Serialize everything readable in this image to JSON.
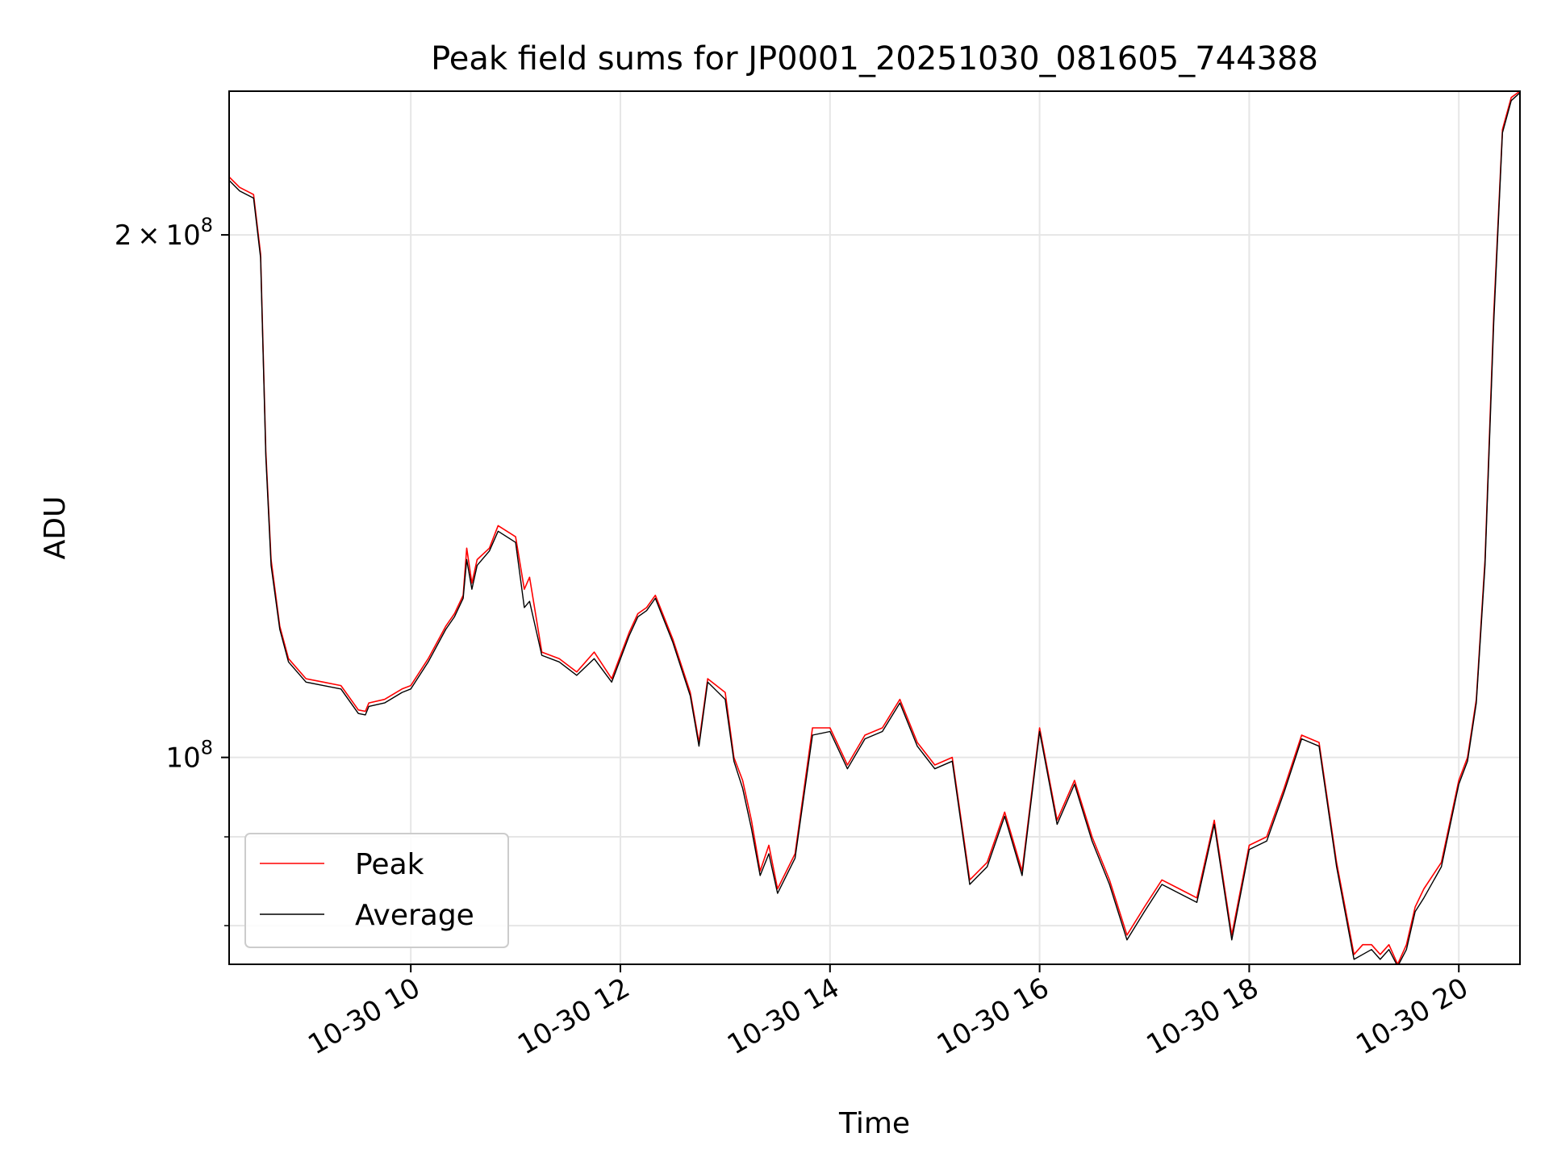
{
  "chart_data": {
    "type": "line",
    "title": "Peak field sums for JP0001_20251030_081605_744388",
    "xlabel": "Time",
    "ylabel": "ADU",
    "x_axis": {
      "kind": "datetime",
      "range": [
        "2025-10-30 08:16",
        "2025-10-30 20:35"
      ],
      "ticks": [
        "2025-10-30 10:00",
        "2025-10-30 12:00",
        "2025-10-30 14:00",
        "2025-10-30 16:00",
        "2025-10-30 18:00",
        "2025-10-30 20:00"
      ],
      "tick_labels": [
        "10-30 10",
        "10-30 12",
        "10-30 14",
        "10-30 16",
        "10-30 18",
        "10-30 20"
      ]
    },
    "y_axis": {
      "scale": "log",
      "range": [
        76000000,
        242000000
      ],
      "major_ticks": [
        100000000,
        200000000
      ],
      "major_tick_labels": [
        {
          "base": "10",
          "exp": "8"
        },
        {
          "mant": "2",
          "base": "10",
          "exp": "8"
        }
      ],
      "minor_ticks": [
        80000000,
        90000000
      ]
    },
    "grid": true,
    "legend": {
      "position": "lower-left",
      "entries": [
        "Peak",
        "Average"
      ]
    },
    "series": [
      {
        "name": "Peak",
        "color": "#ff0000",
        "x": [
          "2025-10-30 08:16",
          "2025-10-30 08:22",
          "2025-10-30 08:30",
          "2025-10-30 08:34",
          "2025-10-30 08:37",
          "2025-10-30 08:40",
          "2025-10-30 08:45",
          "2025-10-30 08:50",
          "2025-10-30 09:00",
          "2025-10-30 09:10",
          "2025-10-30 09:20",
          "2025-10-30 09:30",
          "2025-10-30 09:34",
          "2025-10-30 09:36",
          "2025-10-30 09:45",
          "2025-10-30 09:55",
          "2025-10-30 10:00",
          "2025-10-30 10:10",
          "2025-10-30 10:20",
          "2025-10-30 10:25",
          "2025-10-30 10:30",
          "2025-10-30 10:32",
          "2025-10-30 10:35",
          "2025-10-30 10:38",
          "2025-10-30 10:45",
          "2025-10-30 10:50",
          "2025-10-30 11:00",
          "2025-10-30 11:05",
          "2025-10-30 11:08",
          "2025-10-30 11:15",
          "2025-10-30 11:25",
          "2025-10-30 11:35",
          "2025-10-30 11:45",
          "2025-10-30 11:55",
          "2025-10-30 12:05",
          "2025-10-30 12:10",
          "2025-10-30 12:15",
          "2025-10-30 12:20",
          "2025-10-30 12:30",
          "2025-10-30 12:40",
          "2025-10-30 12:45",
          "2025-10-30 12:50",
          "2025-10-30 13:00",
          "2025-10-30 13:05",
          "2025-10-30 13:10",
          "2025-10-30 13:15",
          "2025-10-30 13:20",
          "2025-10-30 13:25",
          "2025-10-30 13:30",
          "2025-10-30 13:40",
          "2025-10-30 13:50",
          "2025-10-30 14:00",
          "2025-10-30 14:10",
          "2025-10-30 14:20",
          "2025-10-30 14:30",
          "2025-10-30 14:40",
          "2025-10-30 14:50",
          "2025-10-30 15:00",
          "2025-10-30 15:10",
          "2025-10-30 15:20",
          "2025-10-30 15:30",
          "2025-10-30 15:40",
          "2025-10-30 15:50",
          "2025-10-30 16:00",
          "2025-10-30 16:10",
          "2025-10-30 16:20",
          "2025-10-30 16:30",
          "2025-10-30 16:40",
          "2025-10-30 16:50",
          "2025-10-30 17:00",
          "2025-10-30 17:10",
          "2025-10-30 17:20",
          "2025-10-30 17:30",
          "2025-10-30 17:40",
          "2025-10-30 17:50",
          "2025-10-30 18:00",
          "2025-10-30 18:10",
          "2025-10-30 18:20",
          "2025-10-30 18:30",
          "2025-10-30 18:40",
          "2025-10-30 18:50",
          "2025-10-30 19:00",
          "2025-10-30 19:05",
          "2025-10-30 19:10",
          "2025-10-30 19:15",
          "2025-10-30 19:20",
          "2025-10-30 19:25",
          "2025-10-30 19:30",
          "2025-10-30 19:35",
          "2025-10-30 19:40",
          "2025-10-30 19:50",
          "2025-10-30 20:00",
          "2025-10-30 20:05",
          "2025-10-30 20:10",
          "2025-10-30 20:15",
          "2025-10-30 20:20",
          "2025-10-30 20:25",
          "2025-10-30 20:30",
          "2025-10-30 20:35"
        ],
        "values": [
          216000000,
          213000000,
          211000000,
          195000000,
          150000000,
          130000000,
          119000000,
          114000000,
          111000000,
          110500000,
          110000000,
          106500000,
          106300000,
          107500000,
          108000000,
          109500000,
          110000000,
          114000000,
          119000000,
          121000000,
          124000000,
          132000000,
          126000000,
          130000000,
          132000000,
          136000000,
          134000000,
          125000000,
          127000000,
          115000000,
          114000000,
          112000000,
          115000000,
          111000000,
          118000000,
          121000000,
          122000000,
          124000000,
          117000000,
          109000000,
          102000000,
          111000000,
          109000000,
          100000000,
          97000000,
          92000000,
          86000000,
          89000000,
          84000000,
          88000000,
          104000000,
          104000000,
          99000000,
          103000000,
          104000000,
          108000000,
          102000000,
          99000000,
          100000000,
          85000000,
          87000000,
          93000000,
          86000000,
          104000000,
          92000000,
          97000000,
          90000000,
          85000000,
          79000000,
          82000000,
          85000000,
          84000000,
          83000000,
          92000000,
          79000000,
          89000000,
          90000000,
          96000000,
          103000000,
          102000000,
          87000000,
          77000000,
          78000000,
          78000000,
          77000000,
          78000000,
          76000000,
          78000000,
          82000000,
          84000000,
          87000000,
          97000000,
          100000000,
          108000000,
          130000000,
          180000000,
          230000000,
          240000000,
          242000000
        ]
      },
      {
        "name": "Average",
        "color": "#000000",
        "x": [
          "2025-10-30 08:16",
          "2025-10-30 08:22",
          "2025-10-30 08:30",
          "2025-10-30 08:34",
          "2025-10-30 08:37",
          "2025-10-30 08:40",
          "2025-10-30 08:45",
          "2025-10-30 08:50",
          "2025-10-30 09:00",
          "2025-10-30 09:10",
          "2025-10-30 09:20",
          "2025-10-30 09:30",
          "2025-10-30 09:34",
          "2025-10-30 09:36",
          "2025-10-30 09:45",
          "2025-10-30 09:55",
          "2025-10-30 10:00",
          "2025-10-30 10:10",
          "2025-10-30 10:20",
          "2025-10-30 10:25",
          "2025-10-30 10:30",
          "2025-10-30 10:32",
          "2025-10-30 10:35",
          "2025-10-30 10:38",
          "2025-10-30 10:45",
          "2025-10-30 10:50",
          "2025-10-30 11:00",
          "2025-10-30 11:05",
          "2025-10-30 11:08",
          "2025-10-30 11:15",
          "2025-10-30 11:25",
          "2025-10-30 11:35",
          "2025-10-30 11:45",
          "2025-10-30 11:55",
          "2025-10-30 12:05",
          "2025-10-30 12:10",
          "2025-10-30 12:15",
          "2025-10-30 12:20",
          "2025-10-30 12:30",
          "2025-10-30 12:40",
          "2025-10-30 12:45",
          "2025-10-30 12:50",
          "2025-10-30 13:00",
          "2025-10-30 13:05",
          "2025-10-30 13:10",
          "2025-10-30 13:15",
          "2025-10-30 13:20",
          "2025-10-30 13:25",
          "2025-10-30 13:30",
          "2025-10-30 13:40",
          "2025-10-30 13:50",
          "2025-10-30 14:00",
          "2025-10-30 14:10",
          "2025-10-30 14:20",
          "2025-10-30 14:30",
          "2025-10-30 14:40",
          "2025-10-30 14:50",
          "2025-10-30 15:00",
          "2025-10-30 15:10",
          "2025-10-30 15:20",
          "2025-10-30 15:30",
          "2025-10-30 15:40",
          "2025-10-30 15:50",
          "2025-10-30 16:00",
          "2025-10-30 16:10",
          "2025-10-30 16:20",
          "2025-10-30 16:30",
          "2025-10-30 16:40",
          "2025-10-30 16:50",
          "2025-10-30 17:00",
          "2025-10-30 17:10",
          "2025-10-30 17:20",
          "2025-10-30 17:30",
          "2025-10-30 17:40",
          "2025-10-30 17:50",
          "2025-10-30 18:00",
          "2025-10-30 18:10",
          "2025-10-30 18:20",
          "2025-10-30 18:30",
          "2025-10-30 18:40",
          "2025-10-30 18:50",
          "2025-10-30 19:00",
          "2025-10-30 19:05",
          "2025-10-30 19:10",
          "2025-10-30 19:15",
          "2025-10-30 19:20",
          "2025-10-30 19:25",
          "2025-10-30 19:30",
          "2025-10-30 19:35",
          "2025-10-30 19:40",
          "2025-10-30 19:50",
          "2025-10-30 20:00",
          "2025-10-30 20:05",
          "2025-10-30 20:10",
          "2025-10-30 20:15",
          "2025-10-30 20:20",
          "2025-10-30 20:25",
          "2025-10-30 20:30",
          "2025-10-30 20:35"
        ],
        "values": [
          215000000,
          212000000,
          210000000,
          194000000,
          149000000,
          129000000,
          118500000,
          113500000,
          110500000,
          110000000,
          109500000,
          106000000,
          105800000,
          107000000,
          107500000,
          109000000,
          109500000,
          113500000,
          118500000,
          120500000,
          123500000,
          130000000,
          125000000,
          129000000,
          131500000,
          135000000,
          133000000,
          122000000,
          123000000,
          114500000,
          113500000,
          111500000,
          114000000,
          110500000,
          117500000,
          120500000,
          121500000,
          123500000,
          116500000,
          108500000,
          101500000,
          110500000,
          108000000,
          99500000,
          96000000,
          91000000,
          85500000,
          88000000,
          83500000,
          87500000,
          103000000,
          103500000,
          98500000,
          102500000,
          103500000,
          107500000,
          101500000,
          98500000,
          99500000,
          84500000,
          86500000,
          92500000,
          85500000,
          103500000,
          91500000,
          96500000,
          89500000,
          84500000,
          78500000,
          81500000,
          84500000,
          83500000,
          82500000,
          91500000,
          78500000,
          88500000,
          89500000,
          95500000,
          102500000,
          101500000,
          86500000,
          76500000,
          77000000,
          77500000,
          76500000,
          77500000,
          75800000,
          77500000,
          81500000,
          83000000,
          86500000,
          96500000,
          99500000,
          107500000,
          129000000,
          178000000,
          229000000,
          239000000,
          241500000
        ]
      }
    ]
  }
}
